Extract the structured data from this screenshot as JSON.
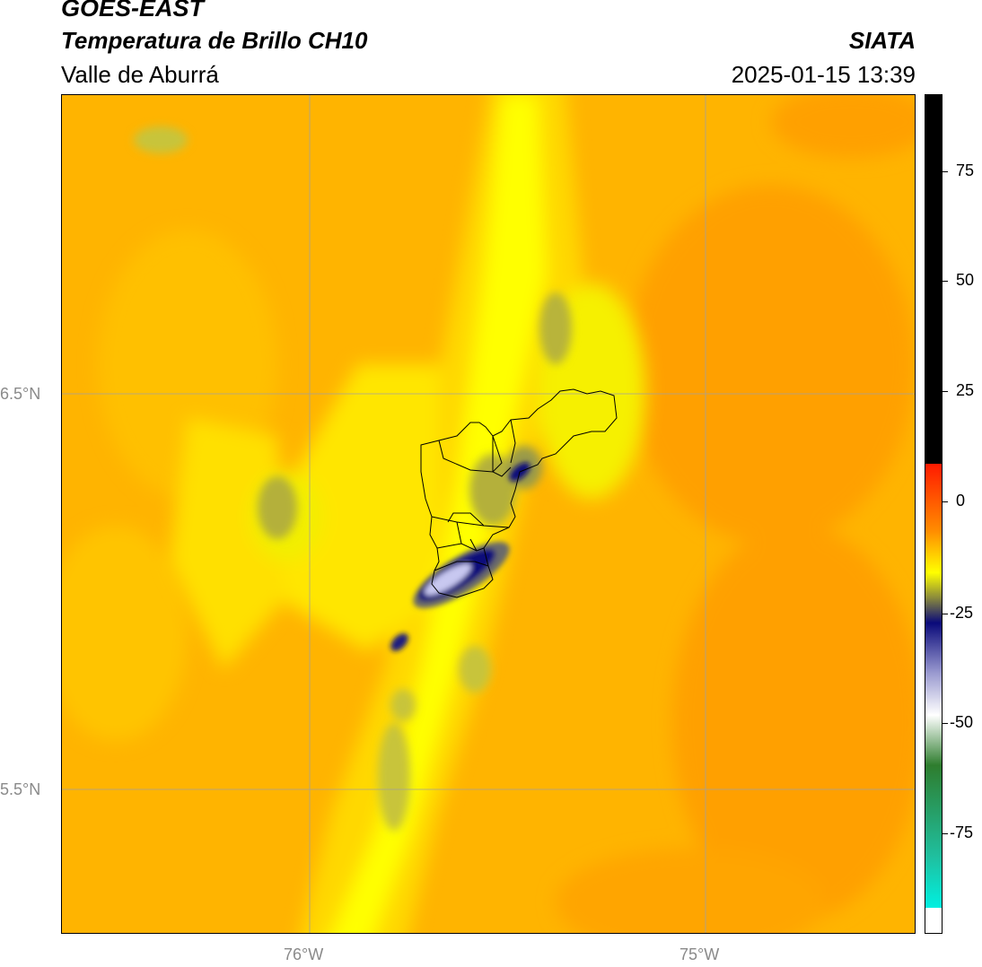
{
  "header": {
    "title": "GOES-EAST",
    "subtitle": "Temperatura de Brillo CH10",
    "region": "Valle de Aburrá",
    "agency": "SIATA",
    "timestamp": "2025-01-15 13:39"
  },
  "map": {
    "lat_labels": [
      "6.5°N",
      "5.5°N"
    ],
    "lon_labels": [
      "76°W",
      "75°W"
    ]
  },
  "colorbar": {
    "ticks": [
      "75",
      "50",
      "25",
      "0",
      "-25",
      "-50",
      "-75"
    ],
    "colors": {
      "black": "#000000",
      "red": "#ff1a00",
      "orange": "#ff8c00",
      "yellow": "#ffff00",
      "olive": "#8a8a3c",
      "navy": "#0a0a7a",
      "lavender": "#9a9ad0",
      "white": "#ffffff",
      "green": "#2e7d2e",
      "teal": "#1fc0a0",
      "cyan": "#00f0e0"
    }
  }
}
